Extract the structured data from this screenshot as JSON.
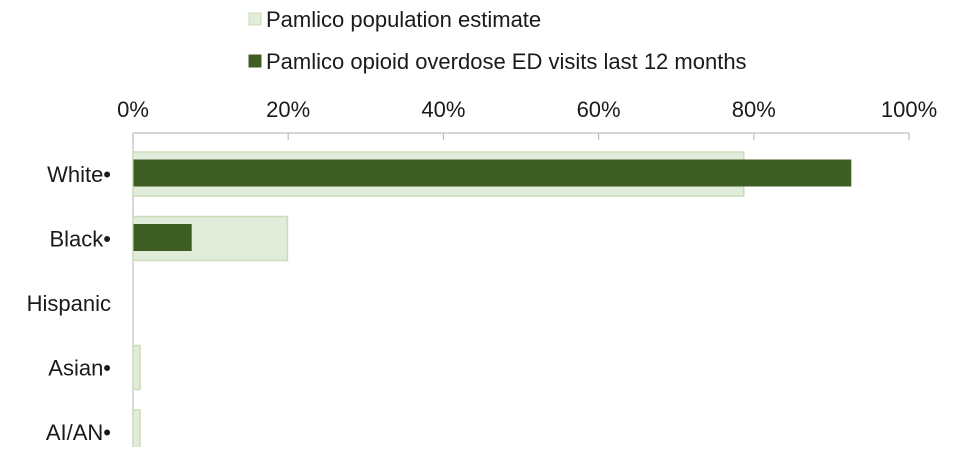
{
  "chart_data": {
    "type": "bar",
    "orientation": "horizontal",
    "categories": [
      "White•",
      "Black•",
      "Hispanic",
      "Asian•",
      "AI/AN•"
    ],
    "series": [
      {
        "name": "Pamlico population estimate",
        "values": [
          78.7,
          19.9,
          0,
          0.9,
          0.9
        ],
        "color": "#e2ecdb",
        "stroke": "#c9ddb9"
      },
      {
        "name": "Pamlico opioid overdose ED visits last 12 months",
        "values": [
          92.5,
          7.5,
          0,
          0,
          0
        ],
        "color": "#3f5e23",
        "stroke": "#3f5e23"
      }
    ],
    "xlim": [
      0,
      100
    ],
    "xticks": [
      "0%",
      "20%",
      "40%",
      "60%",
      "80%",
      "100%"
    ],
    "xaxis_position": "top",
    "grid": false,
    "legend_position": "top"
  }
}
